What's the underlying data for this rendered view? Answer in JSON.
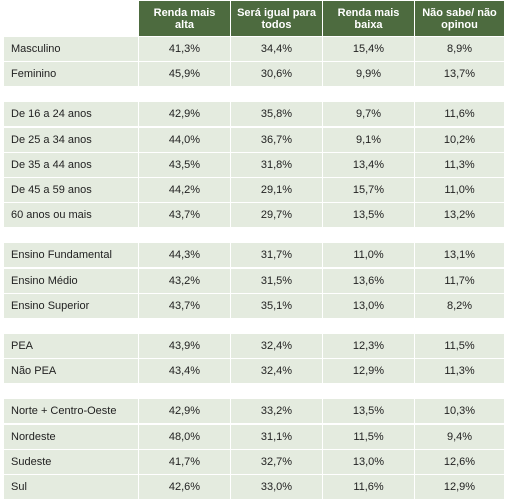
{
  "table": {
    "header": [
      "Renda mais alta",
      "Será igual para todos",
      "Renda mais baixa",
      "Não sabe/ não opinou"
    ],
    "groups": [
      {
        "rows": [
          [
            "Masculino",
            "41,3%",
            "34,4%",
            "15,4%",
            "8,9%"
          ],
          [
            "Feminino",
            "45,9%",
            "30,6%",
            "9,9%",
            "13,7%"
          ]
        ]
      },
      {
        "rows": [
          [
            "De 16 a 24 anos",
            "42,9%",
            "35,8%",
            "9,7%",
            "11,6%"
          ],
          [
            "De 25 a 34 anos",
            "44,0%",
            "36,7%",
            "9,1%",
            "10,2%"
          ],
          [
            "De 35 a 44 anos",
            "43,5%",
            "31,8%",
            "13,4%",
            "11,3%"
          ],
          [
            "De 45 a 59 anos",
            "44,2%",
            "29,1%",
            "15,7%",
            "11,0%"
          ],
          [
            "60 anos ou mais",
            "43,7%",
            "29,7%",
            "13,5%",
            "13,2%"
          ]
        ]
      },
      {
        "rows": [
          [
            "Ensino Fundamental",
            "44,3%",
            "31,7%",
            "11,0%",
            "13,1%"
          ],
          [
            "Ensino Médio",
            "43,2%",
            "31,5%",
            "13,6%",
            "11,7%"
          ],
          [
            "Ensino Superior",
            "43,7%",
            "35,1%",
            "13,0%",
            "8,2%"
          ]
        ]
      },
      {
        "rows": [
          [
            "PEA",
            "43,9%",
            "32,4%",
            "12,3%",
            "11,5%"
          ],
          [
            "Não PEA",
            "43,4%",
            "32,4%",
            "12,9%",
            "11,3%"
          ]
        ]
      },
      {
        "rows": [
          [
            "Norte + Centro-Oeste",
            "42,9%",
            "33,2%",
            "13,5%",
            "10,3%"
          ],
          [
            "Nordeste",
            "48,0%",
            "31,1%",
            "11,5%",
            "9,4%"
          ],
          [
            "Sudeste",
            "41,7%",
            "32,7%",
            "13,0%",
            "12,6%"
          ],
          [
            "Sul",
            "42,6%",
            "33,0%",
            "11,6%",
            "12,9%"
          ]
        ]
      }
    ]
  }
}
